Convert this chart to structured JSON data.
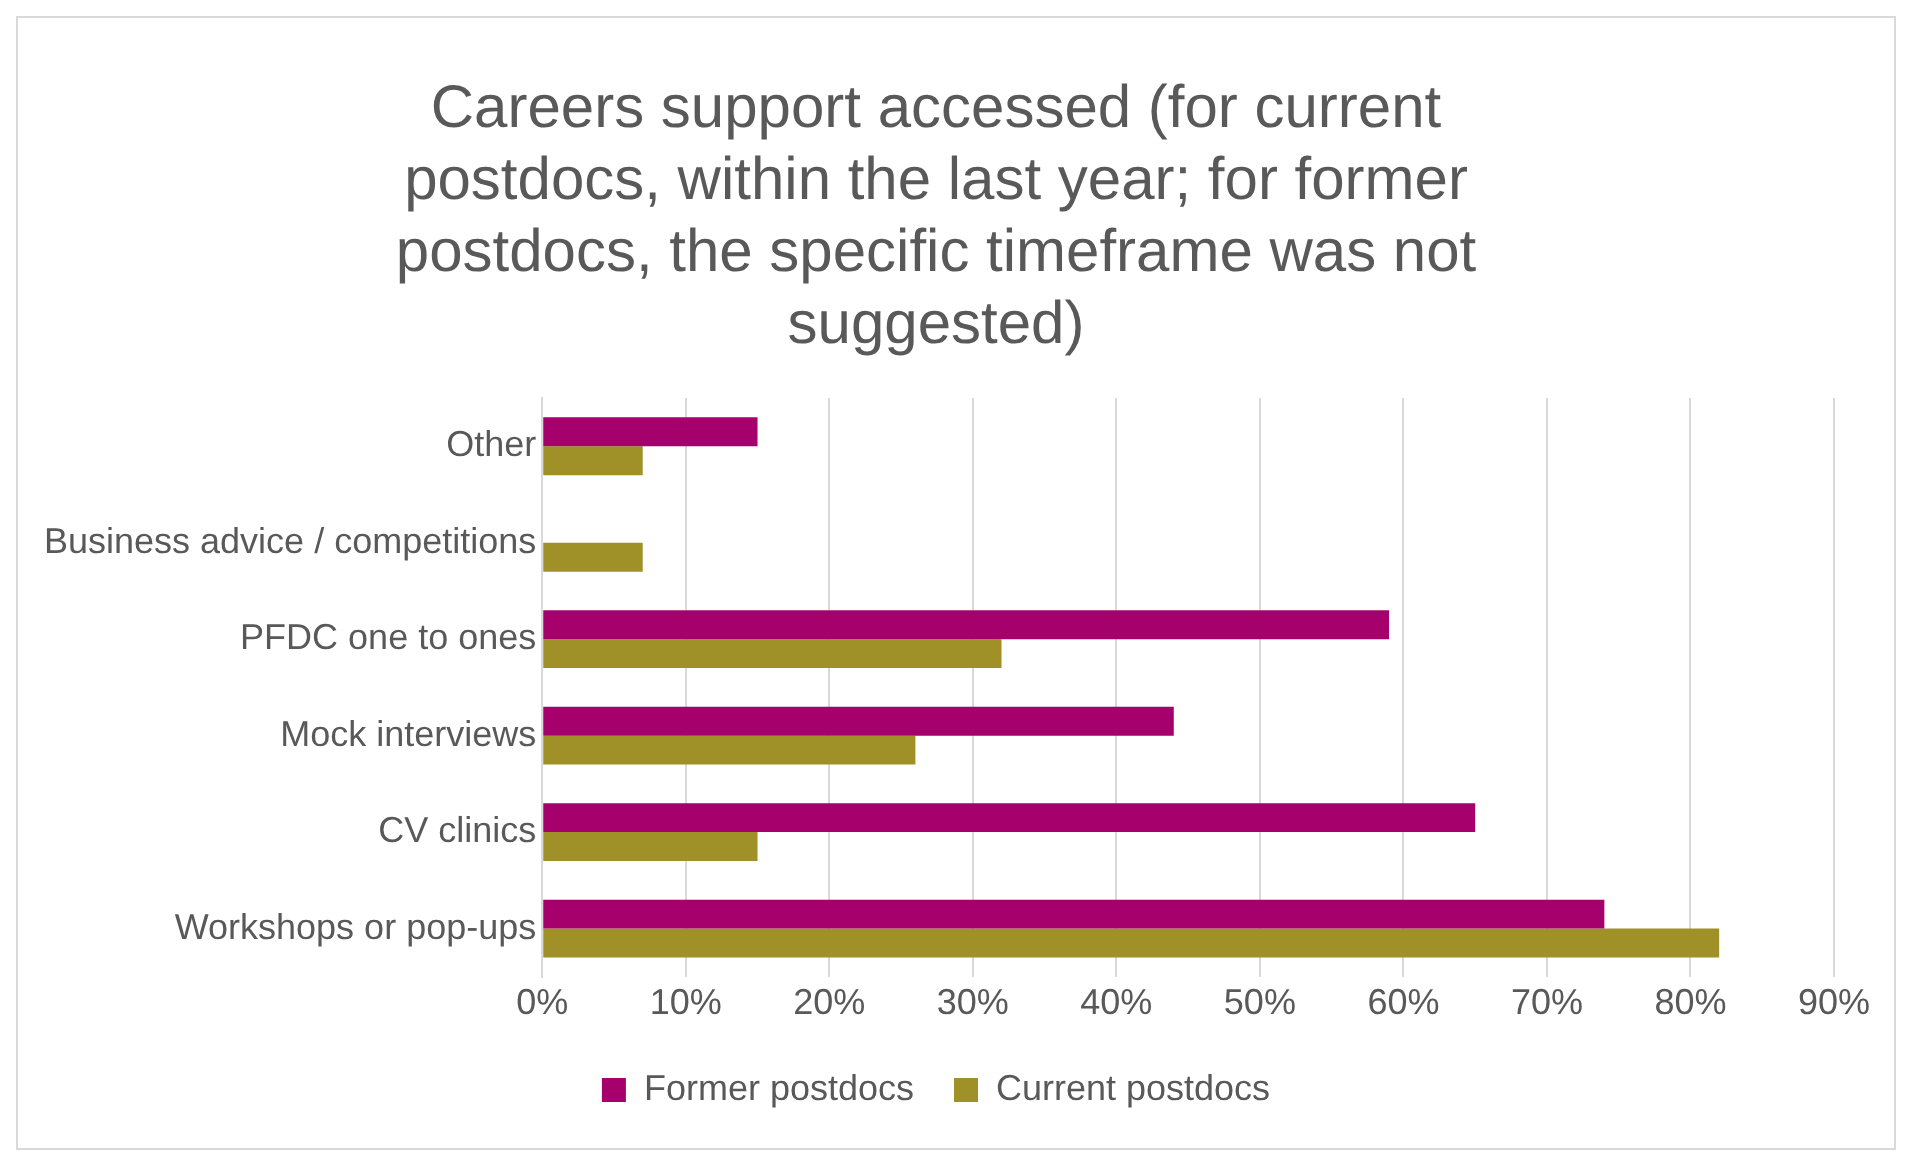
{
  "chart_data": {
    "type": "bar",
    "orientation": "horizontal",
    "title": "Careers support accessed (for current postdocs, within the last year; for former postdocs, the specific timeframe was not suggested)",
    "categories": [
      "Other",
      "Business advice / competitions",
      "PFDC one to ones",
      "Mock interviews",
      "CV clinics",
      "Workshops or pop-ups"
    ],
    "series": [
      {
        "name": "Former postdocs",
        "color": "#a5006b",
        "values": [
          15,
          0,
          59,
          44,
          65,
          74
        ]
      },
      {
        "name": "Current postdocs",
        "color": "#9f9127",
        "values": [
          7,
          7,
          32,
          26,
          15,
          82
        ]
      }
    ],
    "xlim": [
      0,
      90
    ],
    "xticks": [
      {
        "value": 0,
        "label": "0%"
      },
      {
        "value": 10,
        "label": "10%"
      },
      {
        "value": 20,
        "label": "20%"
      },
      {
        "value": 30,
        "label": "30%"
      },
      {
        "value": 40,
        "label": "40%"
      },
      {
        "value": 50,
        "label": "50%"
      },
      {
        "value": 60,
        "label": "60%"
      },
      {
        "value": 70,
        "label": "70%"
      },
      {
        "value": 80,
        "label": "80%"
      },
      {
        "value": 90,
        "label": "90%"
      }
    ],
    "grid": "x",
    "legend": "bottom"
  }
}
